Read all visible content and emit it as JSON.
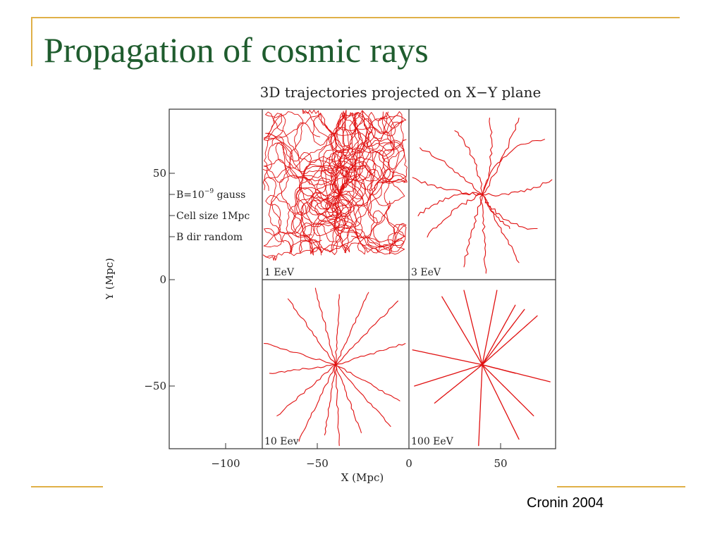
{
  "slide": {
    "title": "Propagation of cosmic rays",
    "credit": "Cronin 2004"
  },
  "colors": {
    "title": "#1f5c2e",
    "accent": "#e0b048",
    "trajectory": "#e01010"
  },
  "chart_data": {
    "type": "line",
    "title": "3D trajectories projected on X−Y plane",
    "xlabel": "X (Mpc)",
    "ylabel": "Y (Mpc)",
    "xlim": [
      -128,
      80
    ],
    "ylim": [
      -80,
      80
    ],
    "xticks": [
      -100,
      -50,
      0,
      50
    ],
    "xtick_labels": [
      "−100",
      "−50",
      "0",
      "50"
    ],
    "yticks": [
      50,
      0,
      -50
    ],
    "ytick_labels": [
      "50",
      "0",
      "−50"
    ],
    "grid": false,
    "legend": {
      "line1_prefix": "B=10",
      "line1_exp": "−9",
      "line1_suffix": " gauss",
      "line2": "Cell size 1Mpc",
      "line3": "B dir random"
    },
    "panels": [
      {
        "label": "1 EeV",
        "xrange": [
          -80,
          -1
        ],
        "yrange": [
          1,
          80
        ],
        "source": [
          -38,
          40
        ],
        "style": "diffusive"
      },
      {
        "label": "3 EeV",
        "xrange": [
          1,
          80
        ],
        "yrange": [
          1,
          80
        ],
        "source": [
          40,
          40
        ],
        "style": "curved"
      },
      {
        "label": "10 Eev",
        "xrange": [
          -80,
          -1
        ],
        "yrange": [
          -80,
          -1
        ],
        "source": [
          -40,
          -40
        ],
        "style": "wiggly"
      },
      {
        "label": "100 EeV",
        "xrange": [
          1,
          80
        ],
        "yrange": [
          -80,
          -1
        ],
        "source": [
          40,
          -40
        ],
        "style": "straight"
      }
    ],
    "rays": {
      "3 EeV": [
        [
          78,
          47
        ],
        [
          74,
          66
        ],
        [
          60,
          76
        ],
        [
          44,
          76
        ],
        [
          25,
          70
        ],
        [
          5,
          30
        ],
        [
          2,
          48
        ],
        [
          6,
          62
        ],
        [
          30,
          6
        ],
        [
          42,
          3
        ],
        [
          60,
          8
        ],
        [
          55,
          24
        ],
        [
          70,
          24
        ],
        [
          10,
          20
        ]
      ],
      "10 Eev": [
        [
          -66,
          -9
        ],
        [
          -51,
          -4
        ],
        [
          -38,
          -7
        ],
        [
          -22,
          -6
        ],
        [
          -6,
          -10
        ],
        [
          -2,
          -30
        ],
        [
          -79,
          -30
        ],
        [
          -76,
          -44
        ],
        [
          -5,
          -57
        ],
        [
          -10,
          -69
        ],
        [
          -38,
          -78
        ],
        [
          -46,
          -73
        ],
        [
          -60,
          -76
        ],
        [
          -72,
          -64
        ],
        [
          -26,
          -72
        ]
      ],
      "100 EeV": [
        [
          18,
          -8
        ],
        [
          30,
          -5
        ],
        [
          48,
          -5
        ],
        [
          58,
          -12
        ],
        [
          63,
          -14
        ],
        [
          70,
          -17
        ],
        [
          2,
          -33
        ],
        [
          3,
          -50
        ],
        [
          14,
          -58
        ],
        [
          38,
          -78
        ],
        [
          60,
          -75
        ],
        [
          68,
          -64
        ],
        [
          77,
          -48
        ],
        [
          58,
          -44
        ]
      ]
    }
  }
}
